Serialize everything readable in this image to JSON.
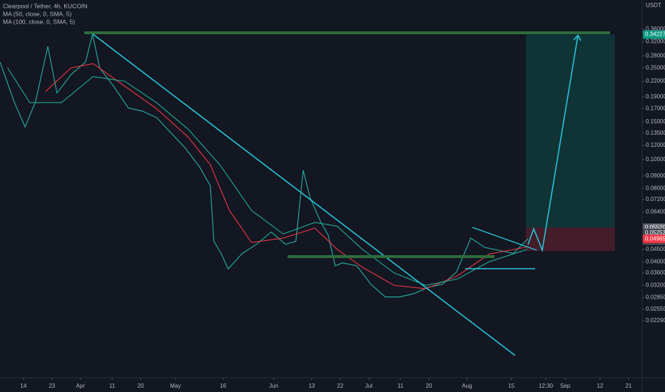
{
  "chart_data": {
    "type": "line",
    "title": "Clearpool / Tether, 4h, KUCOIN",
    "y_unit": "USDT",
    "log": true,
    "ylim": [
      0.01337,
      0.4745
    ],
    "xlim": [
      5.6,
      208.3
    ],
    "yticks": [
      {
        "value": 0.36,
        "label": "0.36000"
      },
      {
        "value": 0.32,
        "label": "0.32000"
      },
      {
        "value": 0.28,
        "label": "0.28000"
      },
      {
        "value": 0.25,
        "label": "0.25000"
      },
      {
        "value": 0.22,
        "label": "0.22000"
      },
      {
        "value": 0.19,
        "label": "0.19000"
      },
      {
        "value": 0.17,
        "label": "0.17000"
      },
      {
        "value": 0.15,
        "label": "0.15000"
      },
      {
        "value": 0.135,
        "label": "0.13500"
      },
      {
        "value": 0.12,
        "label": "0.12000"
      },
      {
        "value": 0.105,
        "label": "0.10500"
      },
      {
        "value": 0.09,
        "label": "0.09000"
      },
      {
        "value": 0.08,
        "label": "0.08000"
      },
      {
        "value": 0.072,
        "label": "0.07200"
      },
      {
        "value": 0.064,
        "label": "0.06400"
      },
      {
        "value": 0.045,
        "label": "0.04500"
      },
      {
        "value": 0.04,
        "label": "0.04000"
      },
      {
        "value": 0.036,
        "label": "0.03600"
      },
      {
        "value": 0.032,
        "label": "0.03200"
      },
      {
        "value": 0.0285,
        "label": "0.02850"
      },
      {
        "value": 0.0255,
        "label": "0.02550"
      },
      {
        "value": 0.0229,
        "label": "0.02290"
      }
    ],
    "xticks": [
      {
        "value": 13,
        "label": "14"
      },
      {
        "value": 22,
        "label": "23"
      },
      {
        "value": 31,
        "label": "Apr"
      },
      {
        "value": 41,
        "label": "11"
      },
      {
        "value": 50,
        "label": "20"
      },
      {
        "value": 61,
        "label": "May"
      },
      {
        "value": 76,
        "label": "16"
      },
      {
        "value": 92,
        "label": "Jun"
      },
      {
        "value": 104,
        "label": "13"
      },
      {
        "value": 113,
        "label": "22"
      },
      {
        "value": 122,
        "label": "Jul"
      },
      {
        "value": 132,
        "label": "11"
      },
      {
        "value": 141,
        "label": "20"
      },
      {
        "value": 153,
        "label": "Aug"
      },
      {
        "value": 167,
        "label": "15"
      },
      {
        "value": 177.9,
        "label": "12:30"
      },
      {
        "value": 184,
        "label": "Sep"
      },
      {
        "value": 195,
        "label": "12"
      },
      {
        "value": 204,
        "label": "21"
      }
    ],
    "series": [
      {
        "color": "#26a69a",
        "x": [
          5.6,
          10.1,
          13.5,
          16.8,
          20.7,
          23.6,
          28.1,
          32.6,
          34.8,
          37.1,
          41.6,
          46.1,
          50.6,
          55.1,
          59.6,
          64.1,
          68.6,
          72,
          73.1,
          75.4,
          77.6,
          82.1,
          86.6,
          91.2,
          95.7,
          99,
          101.3,
          103.5,
          106.9,
          109.2,
          111.4,
          113.7,
          118.2,
          122.7,
          127.2,
          131.7,
          136.2,
          140.7,
          145.2,
          149.7,
          154.2,
          158.7,
          163.2,
          167.7,
          172.2
        ],
        "values": [
          0.264,
          0.181,
          0.143,
          0.181,
          0.306,
          0.197,
          0.235,
          0.264,
          0.343,
          0.249,
          0.209,
          0.171,
          0.166,
          0.156,
          0.135,
          0.117,
          0.098,
          0.082,
          0.0486,
          0.0433,
          0.0374,
          0.0433,
          0.0472,
          0.053,
          0.0472,
          0.0486,
          0.095,
          0.0731,
          0.058,
          0.0515,
          0.0385,
          0.0396,
          0.0385,
          0.0323,
          0.0287,
          0.0287,
          0.0296,
          0.0314,
          0.0323,
          0.0363,
          0.05,
          0.0458,
          0.0445,
          0.0433,
          0.04965
        ]
      },
      {
        "name": "MA (50, close, 0, SMA, 5)",
        "color": "#f23645",
        "x": [
          20,
          28,
          35,
          45,
          55,
          65,
          72,
          78,
          85,
          95,
          105,
          112,
          120,
          130,
          140,
          150,
          160,
          172
        ],
        "values": [
          0.2,
          0.25,
          0.26,
          0.21,
          0.17,
          0.13,
          0.1,
          0.065,
          0.048,
          0.05,
          0.055,
          0.045,
          0.038,
          0.032,
          0.031,
          0.035,
          0.043,
          0.046
        ]
      },
      {
        "name": "MA (100, close, 0, SMA, 5)",
        "color": "#22ab94",
        "x": [
          8,
          15,
          25,
          35,
          45,
          55,
          65,
          75,
          85,
          95,
          105,
          112,
          120,
          130,
          140,
          150,
          160,
          172
        ],
        "values": [
          0.25,
          0.18,
          0.18,
          0.23,
          0.22,
          0.18,
          0.14,
          0.1,
          0.065,
          0.052,
          0.058,
          0.056,
          0.045,
          0.036,
          0.032,
          0.034,
          0.04,
          0.045
        ]
      }
    ],
    "position": {
      "target": 0.34227,
      "entry": 0.0552,
      "stop": 0.0443,
      "start": 171.6,
      "end": 199.7
    },
    "axis_tags": [
      {
        "value": 0.34227,
        "label": "0.34227",
        "color": "#089981"
      },
      {
        "value": 0.0552,
        "label": "0.05520",
        "color": "#5d606b"
      },
      {
        "value": 0.05253,
        "label": "0.05253",
        "color": "#434651"
      },
      {
        "value": 0.04965,
        "label": "0.04965",
        "color": "#f23645"
      }
    ],
    "countdown": "01:12:42"
  }
}
